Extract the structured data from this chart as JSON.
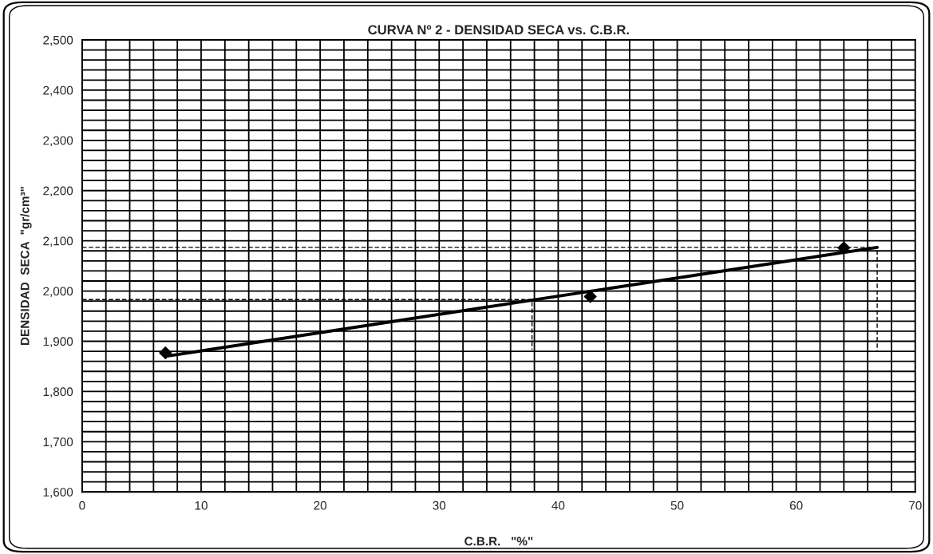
{
  "chart_data": {
    "type": "scatter",
    "title": "CURVA Nº 2 - DENSIDAD SECA vs. C.B.R.",
    "xlabel": "C.B.R.   \"%\"",
    "ylabel": "DENSIDAD  SECA  \"gr/cm³\"",
    "series": [
      {
        "marker": "diamond",
        "color": "#000000",
        "x": [
          7.0,
          42.7,
          64.0
        ],
        "values": [
          1877,
          1989,
          2086
        ]
      },
      {
        "type": "line",
        "marker": "none",
        "line_style": "solid",
        "color": "#000000",
        "x": [
          7.0,
          66.8
        ],
        "values": [
          1870,
          2087
        ]
      },
      {
        "type": "line",
        "marker": "none",
        "line_style": "dashed",
        "color": "#000000",
        "x": [
          0,
          66.8,
          66.8
        ],
        "values": [
          2087,
          2087,
          1880
        ]
      },
      {
        "type": "line",
        "marker": "none",
        "line_style": "dashed",
        "color": "#000000",
        "x": [
          0,
          37.8,
          37.8
        ],
        "values": [
          1983,
          1983,
          1883
        ]
      }
    ],
    "xlim": [
      0,
      70
    ],
    "xticks": [
      0,
      {
        "value": 2,
        "label": null
      },
      {
        "value": 4,
        "label": null
      },
      {
        "value": 6,
        "label": null
      },
      {
        "value": 8,
        "label": null
      },
      10,
      {
        "value": 12,
        "label": null
      },
      {
        "value": 14,
        "label": null
      },
      {
        "value": 16,
        "label": null
      },
      {
        "value": 18,
        "label": null
      },
      20,
      {
        "value": 22,
        "label": null
      },
      {
        "value": 24,
        "label": null
      },
      {
        "value": 26,
        "label": null
      },
      {
        "value": 28,
        "label": null
      },
      30,
      {
        "value": 32,
        "label": null
      },
      {
        "value": 34,
        "label": null
      },
      {
        "value": 36,
        "label": null
      },
      {
        "value": 38,
        "label": null
      },
      40,
      {
        "value": 42,
        "label": null
      },
      {
        "value": 44,
        "label": null
      },
      {
        "value": 46,
        "label": null
      },
      {
        "value": 48,
        "label": null
      },
      50,
      {
        "value": 52,
        "label": null
      },
      {
        "value": 54,
        "label": null
      },
      {
        "value": 56,
        "label": null
      },
      {
        "value": 58,
        "label": null
      },
      60,
      {
        "value": 62,
        "label": null
      },
      {
        "value": 64,
        "label": null
      },
      {
        "value": 66,
        "label": null
      },
      {
        "value": 68,
        "label": null
      },
      70
    ],
    "ylim": [
      1600,
      2500
    ],
    "yticks": [
      {
        "value": 1600,
        "label": "1,600"
      },
      {
        "value": 1620,
        "label": null
      },
      {
        "value": 1640,
        "label": null
      },
      {
        "value": 1660,
        "label": null
      },
      {
        "value": 1680,
        "label": null
      },
      {
        "value": 1700,
        "label": "1,700"
      },
      {
        "value": 1720,
        "label": null
      },
      {
        "value": 1740,
        "label": null
      },
      {
        "value": 1760,
        "label": null
      },
      {
        "value": 1780,
        "label": null
      },
      {
        "value": 1800,
        "label": "1,800"
      },
      {
        "value": 1820,
        "label": null
      },
      {
        "value": 1840,
        "label": null
      },
      {
        "value": 1860,
        "label": null
      },
      {
        "value": 1880,
        "label": null
      },
      {
        "value": 1900,
        "label": "1,900"
      },
      {
        "value": 1920,
        "label": null
      },
      {
        "value": 1940,
        "label": null
      },
      {
        "value": 1960,
        "label": null
      },
      {
        "value": 1980,
        "label": null
      },
      {
        "value": 2000,
        "label": "2,000"
      },
      {
        "value": 2020,
        "label": null
      },
      {
        "value": 2040,
        "label": null
      },
      {
        "value": 2060,
        "label": null
      },
      {
        "value": 2080,
        "label": null
      },
      {
        "value": 2100,
        "label": "2,100"
      },
      {
        "value": 2120,
        "label": null
      },
      {
        "value": 2140,
        "label": null
      },
      {
        "value": 2160,
        "label": null
      },
      {
        "value": 2180,
        "label": null
      },
      {
        "value": 2200,
        "label": "2,200"
      },
      {
        "value": 2220,
        "label": null
      },
      {
        "value": 2240,
        "label": null
      },
      {
        "value": 2260,
        "label": null
      },
      {
        "value": 2280,
        "label": null
      },
      {
        "value": 2300,
        "label": "2,300"
      },
      {
        "value": 2320,
        "label": null
      },
      {
        "value": 2340,
        "label": null
      },
      {
        "value": 2360,
        "label": null
      },
      {
        "value": 2380,
        "label": null
      },
      {
        "value": 2400,
        "label": "2,400"
      },
      {
        "value": 2420,
        "label": null
      },
      {
        "value": 2440,
        "label": null
      },
      {
        "value": 2460,
        "label": null
      },
      {
        "value": 2480,
        "label": null
      },
      {
        "value": 2500,
        "label": "2,500"
      }
    ],
    "grid": true
  }
}
